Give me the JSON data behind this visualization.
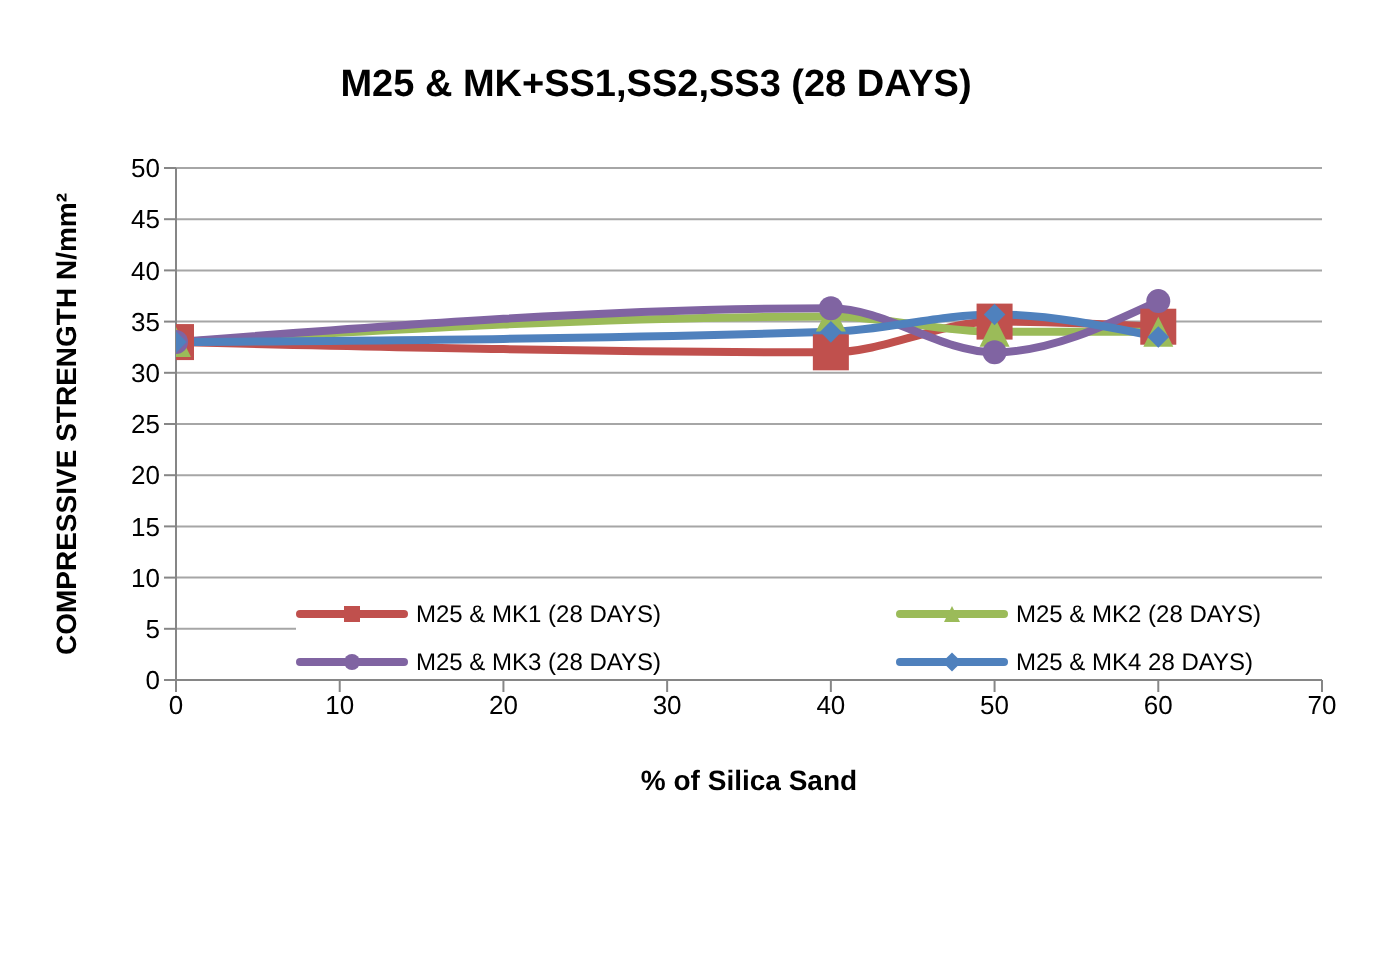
{
  "chart_data": {
    "type": "line",
    "title": "M25 & MK+SS1,SS2,SS3 (28 DAYS)",
    "xlabel": "% of Silica Sand",
    "ylabel": "COMPRESSIVE STRENGTH N/mm²",
    "x": [
      0,
      40,
      50,
      60
    ],
    "series": [
      {
        "name": "M25 & MK1 (28 DAYS)",
        "color": "#c0504d",
        "marker": "square",
        "values": [
          33,
          32,
          35,
          34.5
        ]
      },
      {
        "name": "M25 & MK2 (28 DAYS)",
        "color": "#9bbb59",
        "marker": "triangle",
        "values": [
          33,
          35.5,
          34,
          34
        ]
      },
      {
        "name": "M25 & MK3 (28 DAYS)",
        "color": "#8064a2",
        "marker": "circle",
        "values": [
          33,
          36.3,
          32,
          37
        ]
      },
      {
        "name": "M25 & MK4 28 DAYS)",
        "color": "#4f81bd",
        "marker": "diamond",
        "values": [
          33,
          34,
          35.7,
          33.5
        ]
      }
    ],
    "xlim": [
      0,
      70
    ],
    "xticks": [
      0,
      10,
      20,
      30,
      40,
      50,
      60,
      70
    ],
    "ylim": [
      0,
      50
    ],
    "yticks": [
      0,
      5,
      10,
      15,
      20,
      25,
      30,
      35,
      40,
      45,
      50
    ],
    "grid": "y",
    "legend": "bottom"
  }
}
